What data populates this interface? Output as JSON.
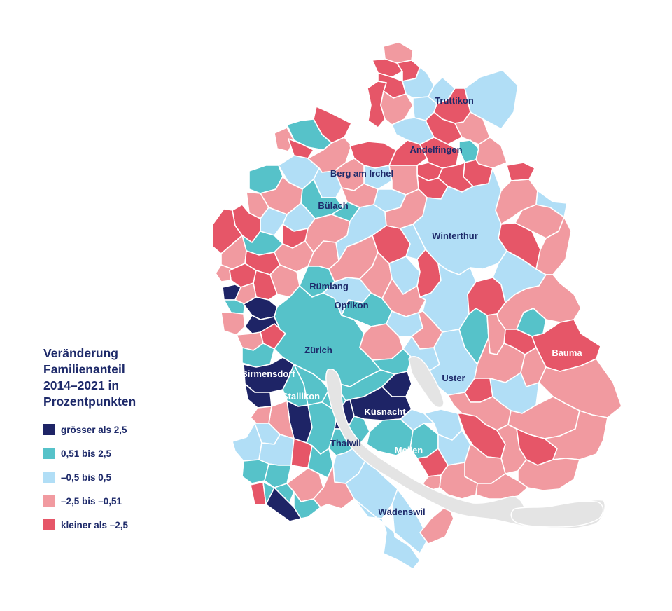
{
  "colors": {
    "class_gt_2_5": "#1e2466",
    "class_0_51_2_5": "#56c2c9",
    "class_m0_5_0_5": "#b1def6",
    "class_m2_5_m0_51": "#f19aa0",
    "class_lt_m2_5": "#e65668",
    "lake": "#e4e4e4",
    "text": "#1e2a6a"
  },
  "legend": {
    "title_lines": [
      "Veränderung",
      "Familienanteil",
      "2014–2021 in",
      "Prozentpunkten"
    ],
    "items": [
      {
        "label": "grösser als 2,5",
        "color": "#1e2466"
      },
      {
        "label": "0,51 bis 2,5",
        "color": "#56c2c9"
      },
      {
        "label": "–0,5 bis 0,5",
        "color": "#b1def6"
      },
      {
        "label": "–2,5 bis –0,51",
        "color": "#f19aa0"
      },
      {
        "label": "kleiner als –2,5",
        "color": "#e65668"
      }
    ]
  },
  "places": {
    "truttikon": "Truttikon",
    "andelfingen": "Andelfingen",
    "berg_am_irchel": "Berg am Irchel",
    "buelach": "Bülach",
    "winterthur": "Winterthur",
    "ruemlang": "Rümlang",
    "opfikon": "Opfikon",
    "zuerich": "Zürich",
    "birmensdorf": "Birmensdorf",
    "stallikon": "Stallikon",
    "kuesnacht": "Küsnacht",
    "uster": "Uster",
    "bauma": "Bauma",
    "thalwil": "Thalwil",
    "meilen": "Meilen",
    "waedenswil": "Wädenswil"
  }
}
